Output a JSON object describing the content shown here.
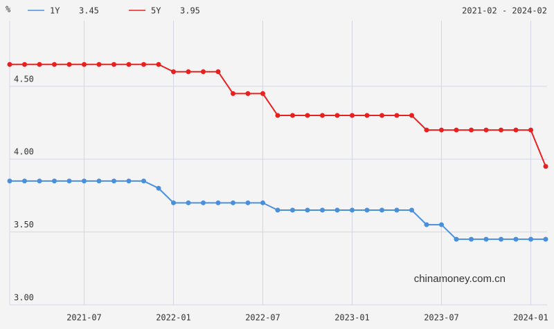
{
  "chart_data": {
    "type": "line",
    "y_label": "%",
    "date_range": "2021-02 - 2024-02",
    "watermark": "chinamoney.com.cn",
    "x": [
      "2021-02",
      "2021-03",
      "2021-04",
      "2021-05",
      "2021-06",
      "2021-07",
      "2021-08",
      "2021-09",
      "2021-10",
      "2021-11",
      "2021-12",
      "2022-01",
      "2022-02",
      "2022-03",
      "2022-04",
      "2022-05",
      "2022-06",
      "2022-07",
      "2022-08",
      "2022-09",
      "2022-10",
      "2022-11",
      "2022-12",
      "2023-01",
      "2023-02",
      "2023-03",
      "2023-04",
      "2023-05",
      "2023-06",
      "2023-07",
      "2023-08",
      "2023-09",
      "2023-10",
      "2023-11",
      "2023-12",
      "2024-01",
      "2024-02"
    ],
    "xticks": [
      "2021-07",
      "2022-01",
      "2022-07",
      "2023-01",
      "2023-07",
      "2024-01"
    ],
    "series": [
      {
        "name": "1Y",
        "color": "#4a8fdc",
        "values": [
          3.85,
          3.85,
          3.85,
          3.85,
          3.85,
          3.85,
          3.85,
          3.85,
          3.85,
          3.85,
          3.8,
          3.7,
          3.7,
          3.7,
          3.7,
          3.7,
          3.7,
          3.7,
          3.65,
          3.65,
          3.65,
          3.65,
          3.65,
          3.65,
          3.65,
          3.65,
          3.65,
          3.65,
          3.55,
          3.55,
          3.45,
          3.45,
          3.45,
          3.45,
          3.45,
          3.45,
          3.45
        ]
      },
      {
        "name": "5Y",
        "color": "#e8201f",
        "values": [
          4.65,
          4.65,
          4.65,
          4.65,
          4.65,
          4.65,
          4.65,
          4.65,
          4.65,
          4.65,
          4.65,
          4.6,
          4.6,
          4.6,
          4.6,
          4.45,
          4.45,
          4.45,
          4.3,
          4.3,
          4.3,
          4.3,
          4.3,
          4.3,
          4.3,
          4.3,
          4.3,
          4.3,
          4.2,
          4.2,
          4.2,
          4.2,
          4.2,
          4.2,
          4.2,
          4.2,
          3.95
        ]
      }
    ],
    "ylim": [
      3,
      4.95
    ],
    "yticks": [
      {
        "value": 3,
        "label": "3.00"
      },
      {
        "value": 3.5,
        "label": "3.50"
      },
      {
        "value": 4,
        "label": "4.00"
      },
      {
        "value": 4.5,
        "label": "4.50"
      }
    ],
    "grid": true
  }
}
